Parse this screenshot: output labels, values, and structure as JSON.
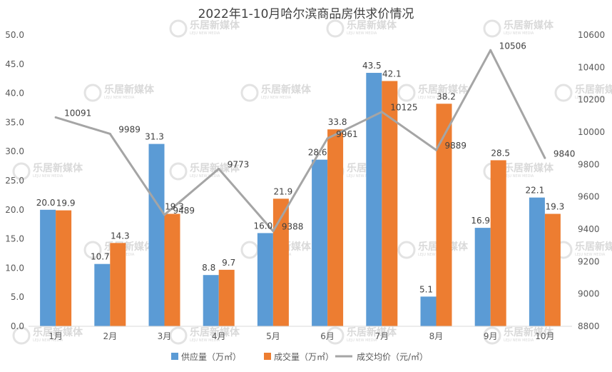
{
  "chart_data": {
    "type": "bar",
    "title": "2022年1-10月哈尔滨商品房供求价情况",
    "categories": [
      "1月",
      "2月",
      "3月",
      "4月",
      "5月",
      "6月",
      "7月",
      "8月",
      "9月",
      "10月"
    ],
    "series": [
      {
        "name": "供应量（万㎡）",
        "type": "bar",
        "axis": "left",
        "color": "#5b9bd5",
        "values": [
          20.0,
          10.7,
          31.3,
          8.8,
          16.0,
          28.6,
          43.5,
          5.1,
          16.9,
          22.1
        ],
        "labels": [
          "20.0",
          "10.7",
          "31.3",
          "8.8",
          "16.0",
          "28.6",
          "43.5",
          "5.1",
          "16.9",
          "22.1"
        ]
      },
      {
        "name": "成交量（万㎡）",
        "type": "bar",
        "axis": "left",
        "color": "#ed7d31",
        "values": [
          19.9,
          14.3,
          19.3,
          9.7,
          21.9,
          33.8,
          42.1,
          38.2,
          28.5,
          19.3
        ],
        "labels": [
          "19.9",
          "14.3",
          "19.3",
          "9.7",
          "21.9",
          "33.8",
          "42.1",
          "38.2",
          "28.5",
          "19.3"
        ]
      },
      {
        "name": "成交均价（元/㎡）",
        "type": "line",
        "axis": "right",
        "color": "#a5a5a5",
        "values": [
          10091,
          9989,
          9489,
          9773,
          9388,
          9961,
          10125,
          9889,
          10506,
          9840
        ],
        "labels": [
          "10091",
          "9989",
          "9489",
          "9773",
          "9388",
          "9961",
          "10125",
          "9889",
          "10506",
          "9840"
        ]
      }
    ],
    "y_left": {
      "min": 0,
      "max": 50,
      "step": 5,
      "ticks": [
        "0.0",
        "5.0",
        "10.0",
        "15.0",
        "20.0",
        "25.0",
        "30.0",
        "35.0",
        "40.0",
        "45.0",
        "50.0"
      ]
    },
    "y_right": {
      "min": 8800,
      "max": 10600,
      "step": 200,
      "ticks": [
        "8800",
        "9000",
        "9200",
        "9400",
        "9600",
        "9800",
        "10000",
        "10200",
        "10400",
        "10600"
      ]
    },
    "grid": false,
    "legend": "bottom"
  },
  "watermark": {
    "text": "乐居新媒体",
    "sub": "LEJU NEW MEDIA"
  }
}
